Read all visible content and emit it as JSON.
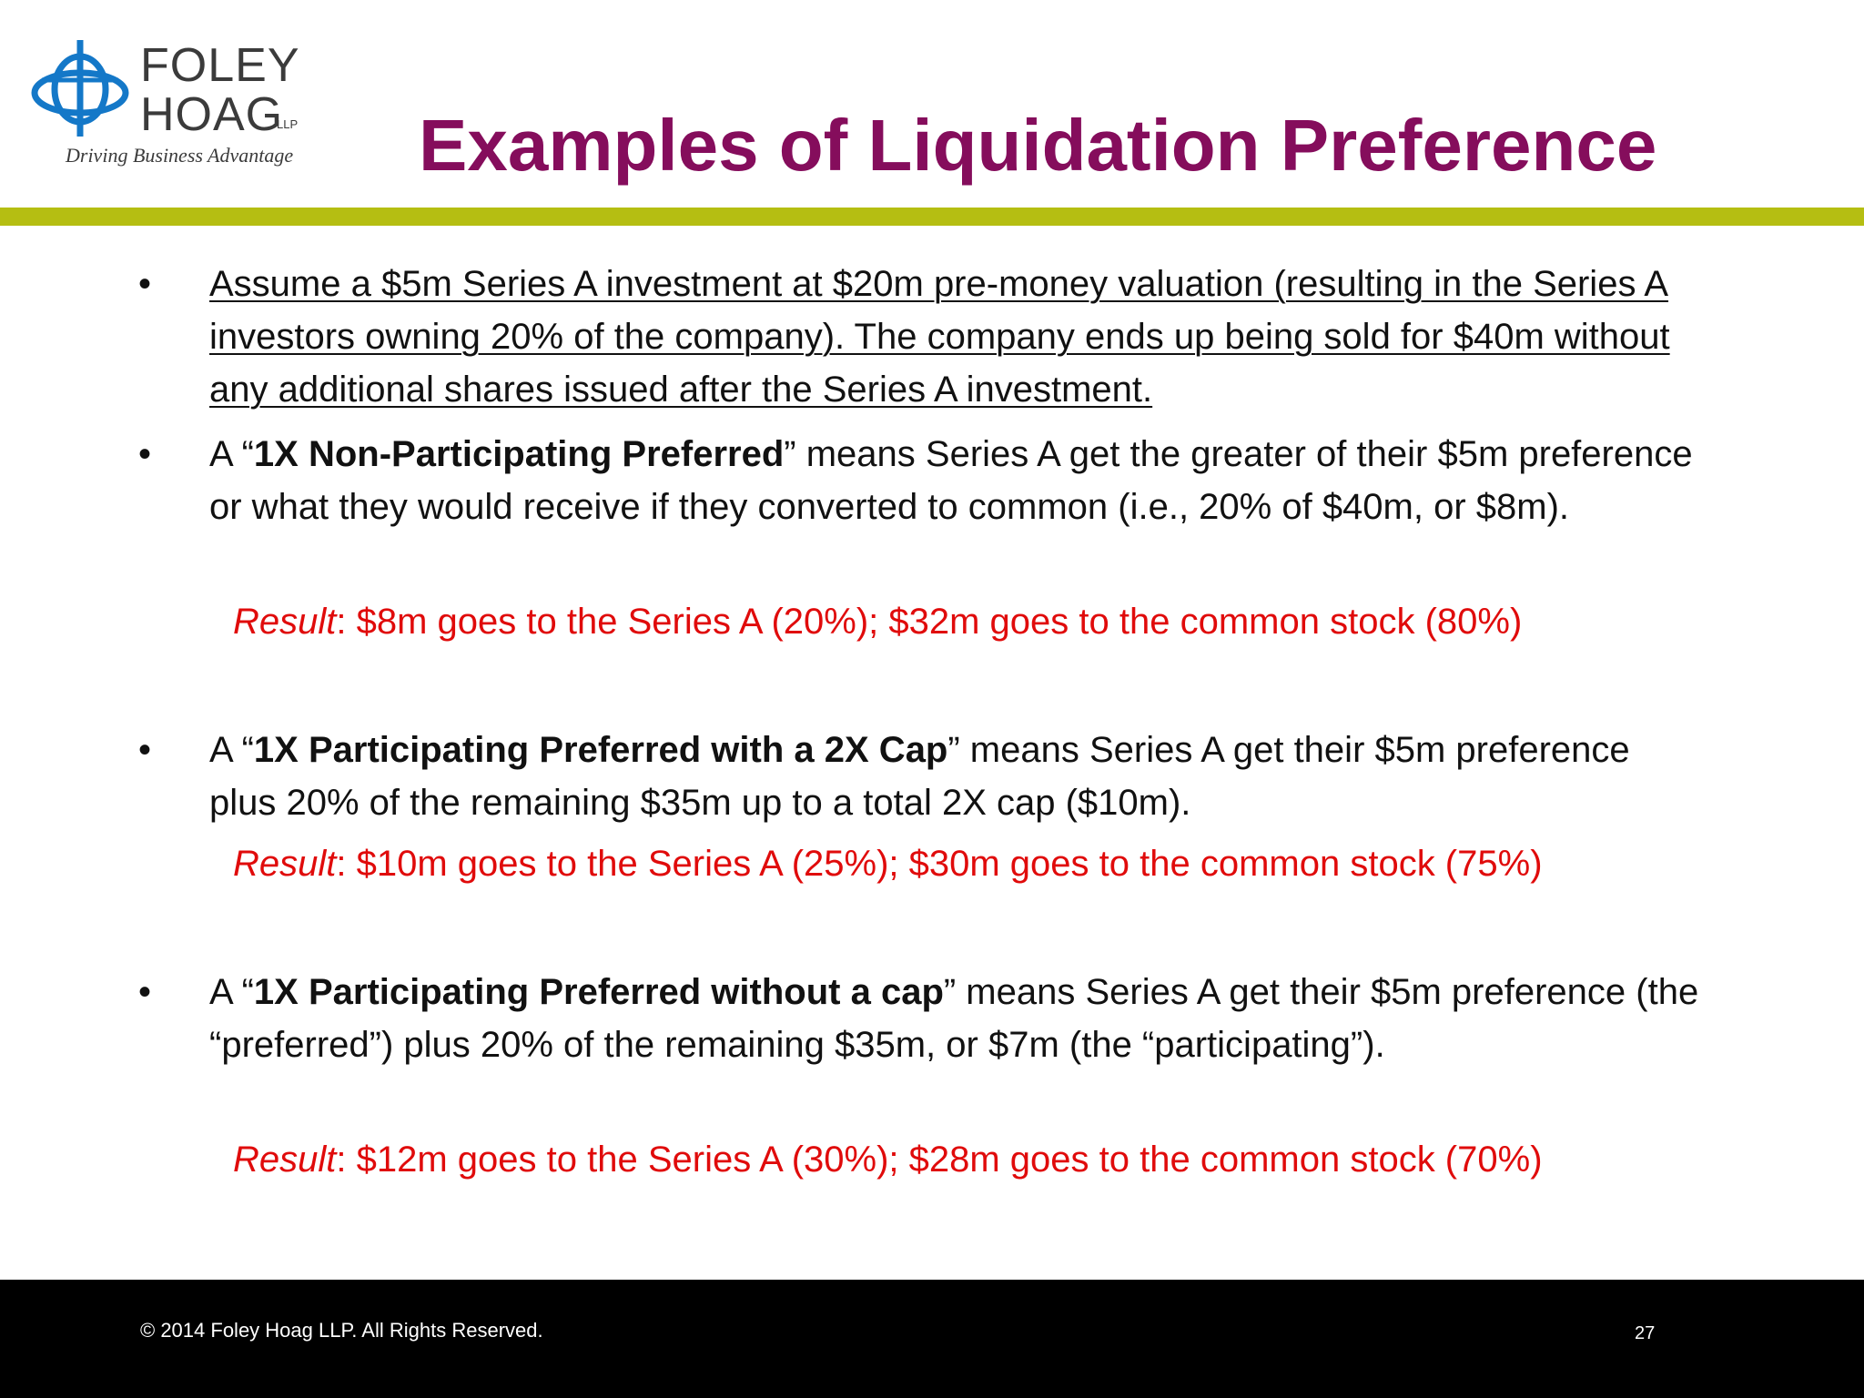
{
  "logo": {
    "word_line1": "FOLEY",
    "word_line2": "HOAG",
    "llp": "LLP",
    "tagline": "Driving Business Advantage",
    "mark_color": "#1478c8"
  },
  "title": "Examples of Liquidation Preference",
  "colors": {
    "title": "#850d5c",
    "rule": "#b5be12",
    "result": "#e00b0b",
    "footer_bg": "#000000"
  },
  "bullets": [
    {
      "text": "Assume a $5m Series A investment at $20m pre-money valuation (resulting in the Series A investors owning 20% of the company).  The company ends up being sold for $40m without any additional shares issued after the Series A investment."
    },
    {
      "lead": "A “",
      "term": "1X Non-Participating Preferred",
      "rest": "” means Series A get the greater of their $5m preference or what they would receive if they converted to common (i.e., 20% of $40m, or $8m).",
      "result_label": "Result",
      "result_text": ": $8m goes to the Series A (20%); $32m goes to the common stock (80%)"
    },
    {
      "lead": "A “",
      "term": "1X Participating Preferred with a 2X Cap",
      "rest": "” means Series A get their $5m preference plus 20% of the remaining $35m up to a total 2X cap ($10m).",
      "result_label": "Result",
      "result_text": ": $10m goes to the Series A (25%); $30m goes to the common stock (75%)"
    },
    {
      "lead": "A “",
      "term": "1X Participating Preferred without a cap",
      "rest": "” means Series A get their $5m preference (the “preferred”) plus 20% of the remaining $35m, or $7m (the “participating”).",
      "result_label": "Result",
      "result_text": ": $12m goes to the Series A (30%); $28m goes to the common stock (70%)"
    }
  ],
  "footer": {
    "copyright": "©  2014 Foley Hoag LLP. All Rights Reserved.",
    "page_number": "27"
  }
}
